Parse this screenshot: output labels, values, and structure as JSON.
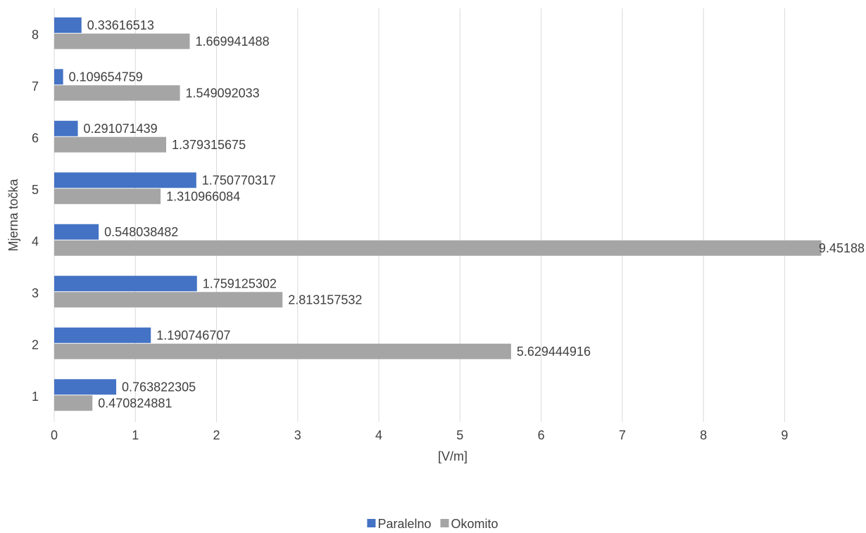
{
  "chart_data": {
    "type": "hbar",
    "categories": [
      "1",
      "2",
      "3",
      "4",
      "5",
      "6",
      "7",
      "8"
    ],
    "series": [
      {
        "name": "Paralelno",
        "color": "#4472c4",
        "values": [
          0.763822305,
          1.190746707,
          1.759125302,
          0.548038482,
          1.750770317,
          0.291071439,
          0.109654759,
          0.33616513
        ]
      },
      {
        "name": "Okomito",
        "color": "#a5a5a5",
        "values": [
          0.470824881,
          5.629444916,
          2.813157532,
          9.45188,
          1.310966084,
          1.379315675,
          1.549092033,
          1.669941488
        ]
      }
    ],
    "xlim": [
      0,
      9.5
    ],
    "xticks": [
      0,
      1,
      2,
      3,
      4,
      5,
      6,
      7,
      8,
      9
    ],
    "x_label": "[V/m]",
    "y_label": "Mjerna točka",
    "grid": true,
    "legend": "bottom"
  }
}
